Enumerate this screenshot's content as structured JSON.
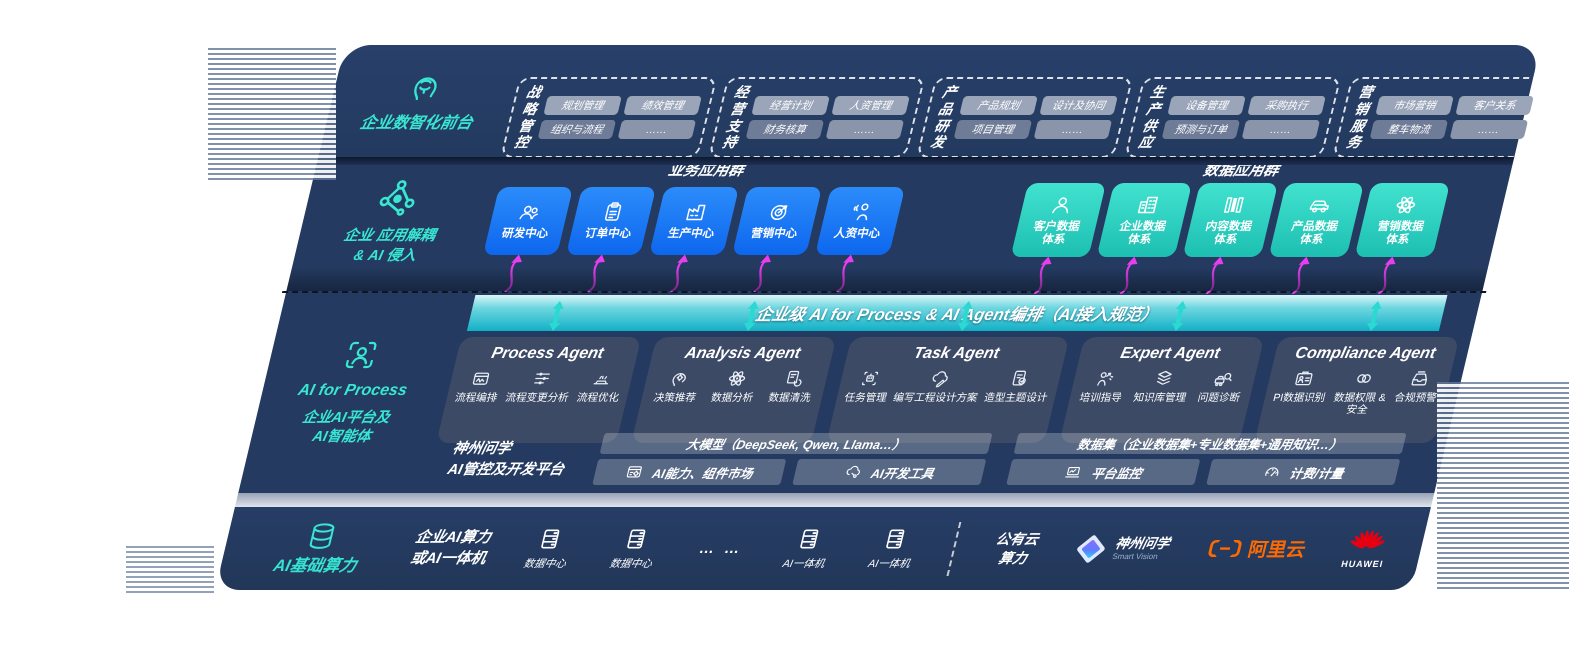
{
  "front": {
    "rail_label": "企业数智化前台",
    "rail_icon": "brain-head-icon",
    "groups": [
      {
        "title": "战略\n管控",
        "chips": [
          "规划管理",
          "绩效管理",
          "组织与流程",
          "……"
        ]
      },
      {
        "title": "经营\n支持",
        "chips": [
          "经营计划",
          "人资管理",
          "财务核算",
          "……"
        ]
      },
      {
        "title": "产品\n研发",
        "chips": [
          "产品规划",
          "设计及协同",
          "项目管理",
          "……"
        ]
      },
      {
        "title": "生产\n供应",
        "chips": [
          "设备管理",
          "采购执行",
          "预测与订单",
          "……"
        ]
      },
      {
        "title": "营销\n服务",
        "chips": [
          "市场营销",
          "客户关系",
          "整车物流",
          "……"
        ]
      }
    ]
  },
  "apps": {
    "rail_label": "企业 应用解耦\n& AI 侵入",
    "rail_icon": "molecule-icon",
    "business_header": "业务应用群",
    "data_header": "数据应用群",
    "business_tiles": [
      {
        "label": "研发中心",
        "icon": "people-icon"
      },
      {
        "label": "订单中心",
        "icon": "clipboard-icon"
      },
      {
        "label": "生产中心",
        "icon": "factory-icon"
      },
      {
        "label": "营销中心",
        "icon": "target-icon"
      },
      {
        "label": "人资中心",
        "icon": "person-waves-icon"
      }
    ],
    "data_tiles": [
      {
        "label": "客户数据\n体系",
        "icon": "person-icon"
      },
      {
        "label": "企业数据\n体系",
        "icon": "building-icon"
      },
      {
        "label": "内容数据\n体系",
        "icon": "columns-icon"
      },
      {
        "label": "产品数据\n体系",
        "icon": "car-icon"
      },
      {
        "label": "营销数据\n体系",
        "icon": "atom-icon"
      }
    ]
  },
  "orchestration": {
    "band_label": "企业级 AI for Process & AI Agent编排（AI接入规范）"
  },
  "ai_platform": {
    "rail_icon": "scan-person-icon",
    "rail_title": "AI for Process",
    "rail_subtitle": "企业AI平台及\nAI智能体",
    "agents": [
      {
        "title": "Process Agent",
        "items": [
          {
            "label": "流程编排",
            "icon": "box-wave-icon"
          },
          {
            "label": "流程变更分析",
            "icon": "sliders-icon"
          },
          {
            "label": "流程优化",
            "icon": "optimize-icon"
          }
        ]
      },
      {
        "title": "Analysis Agent",
        "items": [
          {
            "label": "决策推荐",
            "icon": "head-gear-icon"
          },
          {
            "label": "数据分析",
            "icon": "atom-icon"
          },
          {
            "label": "数据清洗",
            "icon": "doc-refresh-icon"
          }
        ]
      },
      {
        "title": "Task Agent",
        "items": [
          {
            "label": "任务管理",
            "icon": "robot-icon"
          },
          {
            "label": "编写工程设计方案",
            "icon": "cloud-pen-icon"
          },
          {
            "label": "造型主题设计",
            "icon": "doc-check-icon"
          }
        ]
      },
      {
        "title": "Expert Agent",
        "items": [
          {
            "label": "培训指导",
            "icon": "training-icon"
          },
          {
            "label": "知识库管理",
            "icon": "layers-icon"
          },
          {
            "label": "问题诊断",
            "icon": "diagnose-icon"
          }
        ]
      },
      {
        "title": "Compliance Agent",
        "items": [
          {
            "label": "PI数据识别",
            "icon": "id-card-icon"
          },
          {
            "label": "数据权限 &\n安全",
            "icon": "link-shield-icon"
          },
          {
            "label": "合规预警",
            "icon": "inbox-alert-icon"
          }
        ]
      }
    ],
    "platform": {
      "label_line1": "神州问学",
      "label_line2": "AI管控及开发平台",
      "models_bar": "大模型（DeepSeek, Qwen, Llama…）",
      "models_cells": [
        {
          "label": "AI能力、组件市场",
          "icon": "window-gear-icon"
        },
        {
          "label": "AI开发工具",
          "icon": "cloud-tools-icon"
        }
      ],
      "data_bar": "数据集（企业数据集+专业数据集+通用知识…）",
      "data_cells": [
        {
          "label": "平台监控",
          "icon": "laptop-chart-icon"
        },
        {
          "label": "计费/计量",
          "icon": "gauge-icon"
        }
      ]
    }
  },
  "compute": {
    "rail_label": "AI基础算力",
    "rail_icon": "database-icon",
    "capacity_label": "企业AI算力\n或AI一体机",
    "nodes": [
      {
        "label": "数据中心",
        "icon": "server-icon"
      },
      {
        "label": "数据中心",
        "icon": "server-icon"
      },
      {
        "label": "… …",
        "icon": null
      },
      {
        "label": "AI一体机",
        "icon": "server-icon"
      },
      {
        "label": "AI一体机",
        "icon": "server-icon"
      }
    ],
    "public_cloud_label": "公有云\n算力",
    "logos": [
      {
        "name": "shenzhou-wenxue",
        "text": "神州问学",
        "subtext": "Smart Vision"
      },
      {
        "name": "aliyun",
        "text": "阿里云"
      },
      {
        "name": "huawei",
        "text": "HUAWEI"
      }
    ]
  },
  "colors": {
    "panel_navy": "#243A60",
    "accent_teal": "#35E3D0",
    "tile_blue": "#1677F2",
    "tile_teal": "#2BD6C3",
    "arrow_magenta": "#E83EF0",
    "band_teal": "#17B6C9",
    "aliyun_orange": "#FF6A00",
    "huawei_red": "#E60012"
  }
}
